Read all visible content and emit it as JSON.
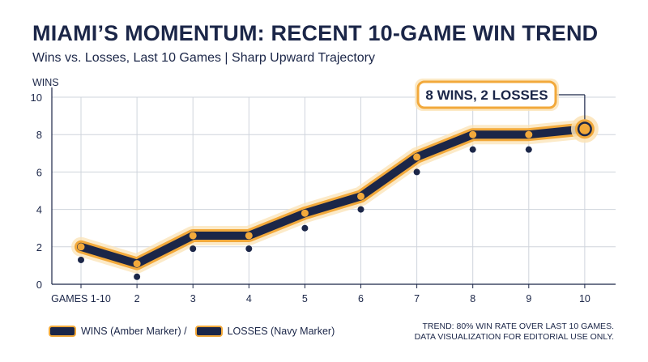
{
  "header": {
    "title": "MIAMI’S MOMENTUM: RECENT 10-GAME WIN TREND",
    "subtitle": "Wins vs. Losses, Last 10 Games | Sharp Upward Trajectory"
  },
  "legend": {
    "wins_label": "WINS (Amber Marker) /",
    "losses_label": "LOSSES (Navy Marker)"
  },
  "note": {
    "line1": "TREND: 80% WIN RATE OVER LAST 10 GAMES.",
    "line2": "DATA VISUALIZATION FOR EDITORIAL USE ONLY."
  },
  "callout": {
    "text": "8 WINS, 2 LOSSES"
  },
  "colors": {
    "navy": "#1b2648",
    "amber": "#f2a93b",
    "glow": "#fbe3b6",
    "grid": "#cfd4dc"
  },
  "chart_data": {
    "type": "line",
    "ylabel": "WINS",
    "ylim": [
      0,
      10
    ],
    "yticks": [
      0,
      2,
      4,
      6,
      8,
      10
    ],
    "categories": [
      "GAMES 1-10",
      "2",
      "3",
      "4",
      "5",
      "6",
      "7",
      "8",
      "9",
      "10"
    ],
    "series": [
      {
        "name": "WINS (Amber Marker)",
        "values": [
          2.0,
          1.1,
          2.6,
          2.6,
          3.8,
          4.7,
          6.8,
          8.0,
          8.0,
          8.3
        ]
      },
      {
        "name": "LOSSES (Navy Marker)",
        "values": [
          1.3,
          0.4,
          1.9,
          1.9,
          3.0,
          4.0,
          6.0,
          7.2,
          7.2,
          null
        ]
      }
    ],
    "grid": true,
    "legend_position": "bottom-left"
  }
}
